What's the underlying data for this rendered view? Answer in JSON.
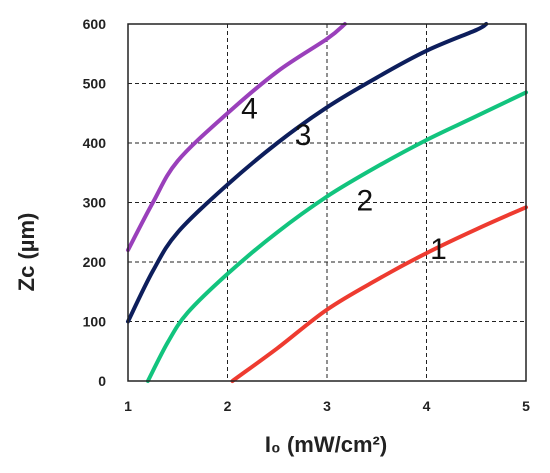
{
  "chart_data": {
    "type": "line",
    "xlabel": "I₀ (mW/cm²)",
    "ylabel": "Zc (µm)",
    "xlim": [
      1,
      5
    ],
    "ylim": [
      0,
      600
    ],
    "xticks": [
      "1",
      "2",
      "3",
      "4",
      "5"
    ],
    "yticks": [
      "0",
      "100",
      "200",
      "300",
      "400",
      "500",
      "600"
    ],
    "grid": true,
    "series": [
      {
        "name": "1",
        "color": "#ee3b30",
        "x": [
          2.05,
          2.5,
          3.0,
          3.5,
          4.0,
          4.5,
          5.0
        ],
        "y": [
          0,
          55,
          120,
          170,
          215,
          255,
          292
        ]
      },
      {
        "name": "2",
        "color": "#12c47e",
        "x": [
          1.2,
          1.4,
          1.6,
          2.0,
          2.5,
          3.0,
          3.5,
          4.0,
          4.5,
          5.0
        ],
        "y": [
          0,
          65,
          115,
          180,
          250,
          310,
          360,
          405,
          445,
          485
        ]
      },
      {
        "name": "3",
        "color": "#0d1e5c",
        "x": [
          1.0,
          1.25,
          1.5,
          2.0,
          2.5,
          3.0,
          3.5,
          4.0,
          4.5,
          4.6
        ],
        "y": [
          100,
          185,
          250,
          330,
          400,
          460,
          510,
          555,
          590,
          600
        ]
      },
      {
        "name": "4",
        "color": "#9a40bb",
        "x": [
          1.0,
          1.25,
          1.5,
          2.0,
          2.5,
          3.0,
          3.18
        ],
        "y": [
          220,
          300,
          370,
          450,
          520,
          575,
          600
        ]
      }
    ]
  }
}
